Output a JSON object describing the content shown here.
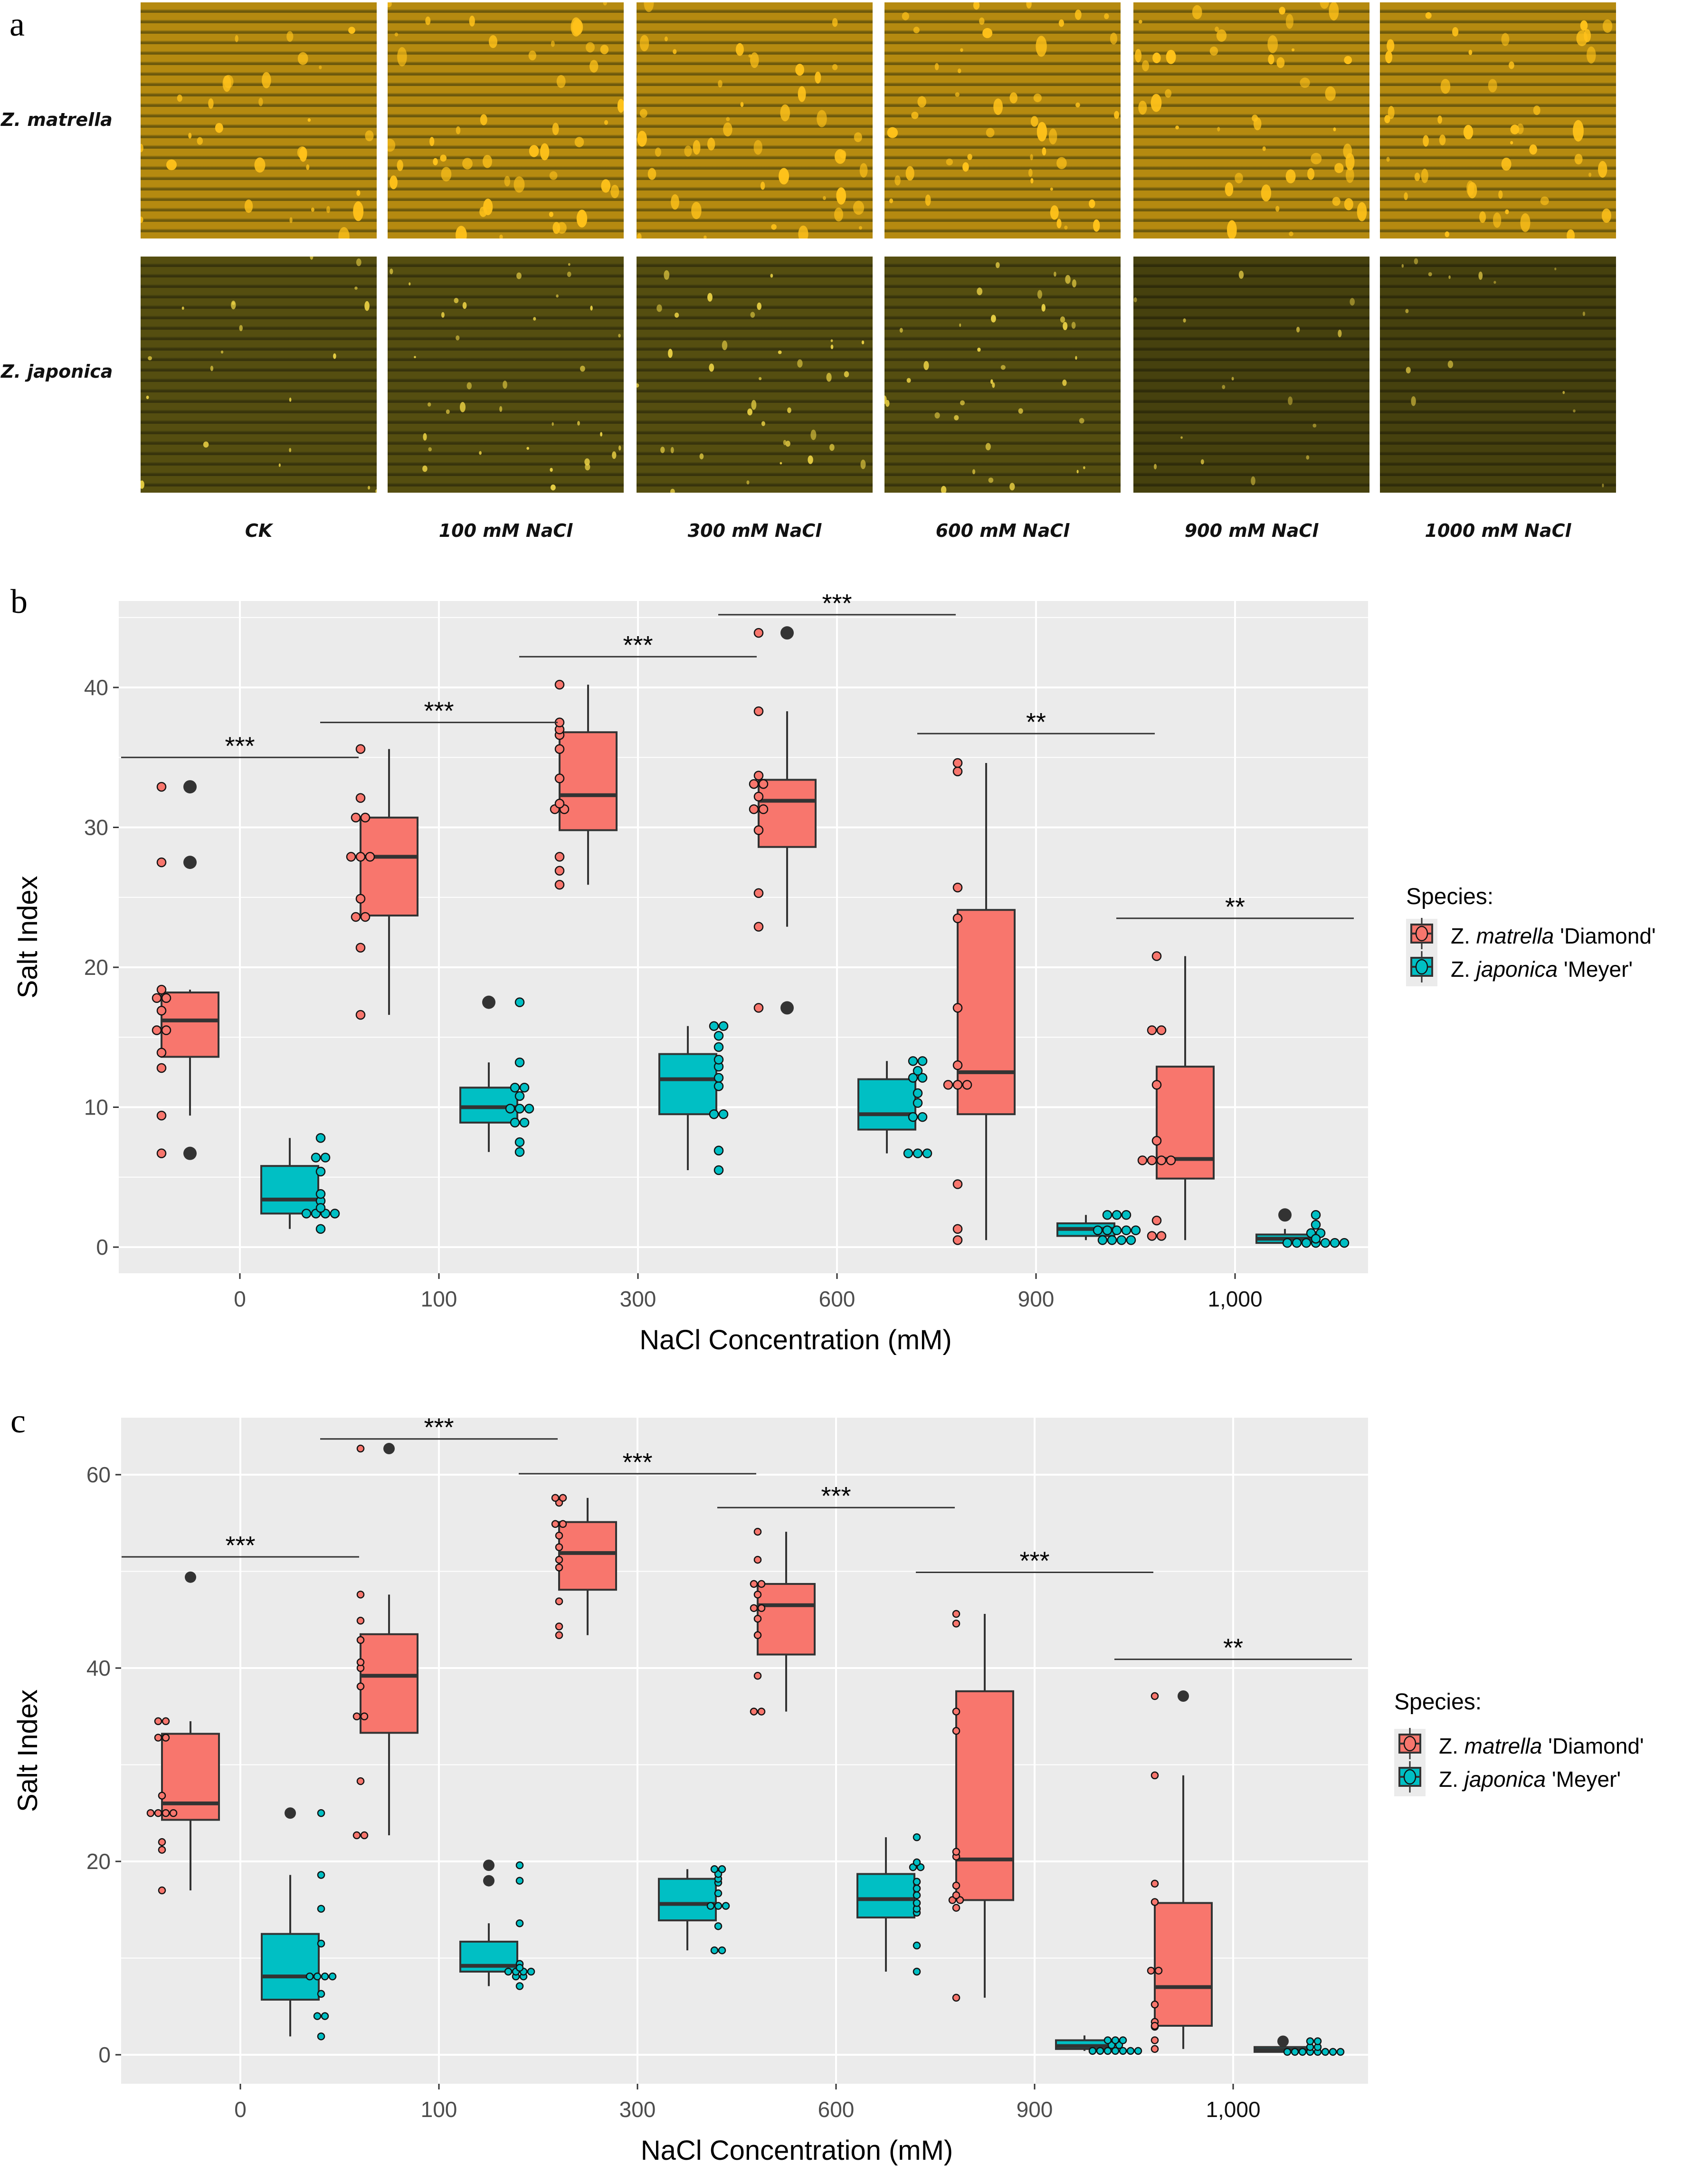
{
  "panel_a": {
    "letter": "a",
    "rows": [
      {
        "label": "Z. matrella",
        "tone": "#b58a10",
        "spot": "#ffc21a",
        "bg": "#6e5a0c"
      },
      {
        "label": "Z. japonica",
        "tone": "#5e5712",
        "spot": "#ffe34a",
        "bg": "#3e3a0d"
      }
    ],
    "columns": [
      "CK",
      "100 mM NaCl",
      "300 mM NaCl",
      "600 mM NaCl",
      "900 mM NaCl",
      "1000 mM NaCl"
    ],
    "image_description": "Fluorescence micrographs of leaf surfaces showing salt gland secretions (yellow spots) on striated dark-olive background"
  },
  "colors": {
    "matrella": "#f8766d",
    "japonica": "#00bfc4",
    "panel_bg": "#ebebeb",
    "grid": "#ffffff",
    "box_stroke": "#333333"
  },
  "legend": {
    "title": "Species:",
    "items": [
      {
        "genus": "Z.",
        "species": "matrella",
        "cultivar": "'Diamond'",
        "color": "#f8766d"
      },
      {
        "genus": "Z.",
        "species": "japonica",
        "cultivar": "'Meyer'",
        "color": "#00bfc4"
      }
    ]
  },
  "chart_data": [
    {
      "panel": "b",
      "type": "box",
      "title": "",
      "xlabel": "NaCl Concentration (mM)",
      "ylabel": "Salt Index",
      "categories": [
        "0",
        "100",
        "300",
        "600",
        "900",
        "1,000"
      ],
      "ylim": [
        -2,
        46
      ],
      "yticks": [
        0,
        10,
        20,
        30,
        40
      ],
      "grid": true,
      "legend_position": "right",
      "significance": [
        {
          "category": "0",
          "label": "***",
          "y": 35
        },
        {
          "category": "100",
          "label": "***",
          "y": 37.5
        },
        {
          "category": "300",
          "label": "***",
          "y": 42.2
        },
        {
          "category": "600",
          "label": "***",
          "y": 45.2
        },
        {
          "category": "900",
          "label": "**",
          "y": 36.7
        },
        {
          "category": "1,000",
          "label": "**",
          "y": 23.5
        }
      ],
      "series": [
        {
          "name": "Z. matrella 'Diamond'",
          "boxes": [
            {
              "q1": 13.6,
              "median": 16.2,
              "q3": 18.2,
              "wlo": 9.4,
              "whi": 18.4,
              "outliers": [
                6.7,
                27.5,
                32.9
              ]
            },
            {
              "q1": 23.7,
              "median": 27.9,
              "q3": 30.7,
              "wlo": 16.6,
              "whi": 35.6,
              "outliers": []
            },
            {
              "q1": 29.8,
              "median": 32.3,
              "q3": 36.8,
              "wlo": 25.9,
              "whi": 40.2,
              "outliers": []
            },
            {
              "q1": 28.6,
              "median": 31.9,
              "q3": 33.4,
              "wlo": 22.9,
              "whi": 38.3,
              "outliers": [
                17.1,
                43.9
              ]
            },
            {
              "q1": 9.5,
              "median": 12.5,
              "q3": 24.1,
              "wlo": 0.5,
              "whi": 34.6,
              "outliers": []
            },
            {
              "q1": 4.9,
              "median": 6.3,
              "q3": 12.9,
              "wlo": 0.5,
              "whi": 20.8,
              "outliers": []
            }
          ],
          "points": [
            [
              6.7,
              9.4,
              12.8,
              13.9,
              15.5,
              15.5,
              16.9,
              17.8,
              17.8,
              18.4,
              27.5,
              32.9
            ],
            [
              16.6,
              21.4,
              23.6,
              23.6,
              24.9,
              27.9,
              27.9,
              27.9,
              30.7,
              30.7,
              32.1,
              35.6
            ],
            [
              25.9,
              26.9,
              27.9,
              31.3,
              31.3,
              31.7,
              33.5,
              35.6,
              36.6,
              37.0,
              37.5,
              40.2
            ],
            [
              17.1,
              22.9,
              25.3,
              29.8,
              31.3,
              31.3,
              32.2,
              33.1,
              33.1,
              33.7,
              38.3,
              43.9
            ],
            [
              0.5,
              1.3,
              4.5,
              11.6,
              11.6,
              11.6,
              13.0,
              17.1,
              23.5,
              25.7,
              34.0,
              34.6
            ],
            [
              0.8,
              0.8,
              1.9,
              6.2,
              6.2,
              6.2,
              6.2,
              7.6,
              11.6,
              15.5,
              15.5,
              20.8
            ]
          ]
        },
        {
          "name": "Z. japonica 'Meyer'",
          "boxes": [
            {
              "q1": 2.4,
              "median": 3.4,
              "q3": 5.8,
              "wlo": 1.3,
              "whi": 7.8,
              "outliers": []
            },
            {
              "q1": 8.9,
              "median": 10.0,
              "q3": 11.4,
              "wlo": 6.8,
              "whi": 13.2,
              "outliers": [
                17.5
              ]
            },
            {
              "q1": 9.5,
              "median": 12.0,
              "q3": 13.8,
              "wlo": 5.5,
              "whi": 15.8,
              "outliers": []
            },
            {
              "q1": 8.4,
              "median": 9.5,
              "q3": 12.0,
              "wlo": 6.7,
              "whi": 13.3,
              "outliers": []
            },
            {
              "q1": 0.8,
              "median": 1.3,
              "q3": 1.7,
              "wlo": 0.5,
              "whi": 2.3,
              "outliers": []
            },
            {
              "q1": 0.3,
              "median": 0.6,
              "q3": 0.9,
              "wlo": 0.3,
              "whi": 1.3,
              "outliers": [
                2.3
              ]
            }
          ],
          "points": [
            [
              1.3,
              2.4,
              2.4,
              2.4,
              2.4,
              3.3,
              3.8,
              5.4,
              6.4,
              6.4,
              7.8,
              2.8
            ],
            [
              6.8,
              7.5,
              8.9,
              8.9,
              9.9,
              9.9,
              9.9,
              10.8,
              11.4,
              11.4,
              13.2,
              17.5
            ],
            [
              5.5,
              6.9,
              9.5,
              9.5,
              11.5,
              12.1,
              12.9,
              13.4,
              14.3,
              15.1,
              15.8,
              15.8
            ],
            [
              6.7,
              6.7,
              6.7,
              9.3,
              9.3,
              10.3,
              11.0,
              12.1,
              12.1,
              12.6,
              13.3,
              13.3
            ],
            [
              0.5,
              0.5,
              0.5,
              0.5,
              1.2,
              1.2,
              1.2,
              1.2,
              1.2,
              2.3,
              2.3,
              2.3
            ],
            [
              0.3,
              0.3,
              0.3,
              0.3,
              0.3,
              0.3,
              0.3,
              1.0,
              1.0,
              1.6,
              2.3,
              0.6
            ]
          ]
        }
      ]
    },
    {
      "panel": "c",
      "type": "box",
      "title": "",
      "xlabel": "NaCl Concentration (mM)",
      "ylabel": "Salt Index",
      "categories": [
        "0",
        "100",
        "300",
        "600",
        "900",
        "1,000"
      ],
      "ylim": [
        -3,
        66
      ],
      "yticks": [
        0,
        20,
        40,
        60
      ],
      "grid": true,
      "legend_position": "right",
      "significance": [
        {
          "category": "0",
          "label": "***",
          "y": 51.5
        },
        {
          "category": "100",
          "label": "***",
          "y": 63.7
        },
        {
          "category": "300",
          "label": "***",
          "y": 60.1
        },
        {
          "category": "600",
          "label": "***",
          "y": 56.6
        },
        {
          "category": "900",
          "label": "***",
          "y": 49.9
        },
        {
          "category": "1,000",
          "label": "**",
          "y": 40.9
        }
      ],
      "series": [
        {
          "name": "Z. matrella 'Diamond'",
          "boxes": [
            {
              "q1": 24.3,
              "median": 26.0,
              "q3": 33.2,
              "wlo": 17.0,
              "whi": 34.5,
              "outliers": [
                49.4
              ]
            },
            {
              "q1": 33.3,
              "median": 39.2,
              "q3": 43.5,
              "wlo": 22.7,
              "whi": 47.6,
              "outliers": [
                62.7
              ]
            },
            {
              "q1": 48.1,
              "median": 51.9,
              "q3": 55.1,
              "wlo": 43.4,
              "whi": 57.6,
              "outliers": []
            },
            {
              "q1": 41.4,
              "median": 46.5,
              "q3": 48.7,
              "wlo": 35.5,
              "whi": 54.1,
              "outliers": []
            },
            {
              "q1": 16.0,
              "median": 20.2,
              "q3": 37.6,
              "wlo": 5.9,
              "whi": 45.6,
              "outliers": []
            },
            {
              "q1": 3.0,
              "median": 7.0,
              "q3": 15.7,
              "wlo": 0.6,
              "whi": 28.9,
              "outliers": [
                37.1
              ]
            }
          ],
          "points": [
            [
              17.0,
              21.2,
              22.0,
              25.0,
              25.0,
              25.0,
              25.0,
              26.8,
              32.8,
              32.8,
              34.5,
              34.5
            ],
            [
              22.7,
              22.7,
              28.3,
              35.0,
              35.0,
              38.1,
              40.0,
              40.6,
              42.9,
              44.9,
              47.6,
              62.7
            ],
            [
              43.4,
              44.3,
              46.9,
              50.4,
              51.2,
              52.5,
              53.7,
              54.9,
              54.9,
              57.1,
              57.6,
              57.6
            ],
            [
              35.5,
              35.5,
              39.2,
              43.4,
              45.1,
              46.2,
              46.2,
              47.6,
              48.7,
              48.7,
              51.2,
              54.1
            ],
            [
              5.9,
              15.2,
              16.0,
              16.0,
              16.5,
              17.5,
              20.5,
              21.0,
              33.5,
              35.5,
              44.6,
              45.6
            ],
            [
              0.6,
              1.5,
              2.9,
              3.4,
              5.2,
              8.7,
              8.7,
              15.8,
              17.7,
              28.9,
              37.1,
              3.0
            ]
          ]
        },
        {
          "name": "Z. japonica 'Meyer'",
          "boxes": [
            {
              "q1": 5.7,
              "median": 8.1,
              "q3": 12.5,
              "wlo": 1.9,
              "whi": 18.6,
              "outliers": [
                25.0
              ]
            },
            {
              "q1": 8.6,
              "median": 9.2,
              "q3": 11.7,
              "wlo": 7.1,
              "whi": 13.6,
              "outliers": [
                18.0,
                19.6
              ]
            },
            {
              "q1": 13.9,
              "median": 15.6,
              "q3": 18.2,
              "wlo": 10.8,
              "whi": 19.2,
              "outliers": []
            },
            {
              "q1": 14.2,
              "median": 16.1,
              "q3": 18.7,
              "wlo": 8.6,
              "whi": 22.5,
              "outliers": []
            },
            {
              "q1": 0.6,
              "median": 0.9,
              "q3": 1.5,
              "wlo": 0.4,
              "whi": 2.0,
              "outliers": []
            },
            {
              "q1": 0.3,
              "median": 0.5,
              "q3": 0.8,
              "wlo": 0.3,
              "whi": 0.9,
              "outliers": [
                1.4
              ]
            }
          ],
          "points": [
            [
              1.9,
              4.0,
              4.0,
              6.3,
              8.1,
              8.1,
              8.1,
              8.1,
              11.5,
              15.1,
              18.6,
              25.0
            ],
            [
              7.1,
              8.1,
              8.1,
              8.6,
              8.6,
              8.6,
              8.6,
              9.4,
              13.6,
              18.0,
              19.6,
              9.0
            ],
            [
              10.8,
              10.8,
              13.3,
              15.4,
              15.4,
              15.4,
              16.7,
              17.8,
              18.2,
              18.7,
              19.2,
              19.2
            ],
            [
              8.6,
              11.3,
              14.7,
              15.1,
              15.7,
              16.5,
              17.2,
              17.9,
              19.4,
              19.4,
              19.9,
              22.5
            ],
            [
              0.4,
              0.4,
              0.4,
              0.4,
              0.4,
              0.4,
              0.4,
              1.0,
              1.0,
              1.5,
              1.5,
              1.5
            ],
            [
              0.3,
              0.3,
              0.3,
              0.3,
              0.3,
              0.3,
              0.3,
              0.8,
              0.8,
              1.4,
              1.4,
              0.3
            ]
          ]
        }
      ]
    }
  ]
}
